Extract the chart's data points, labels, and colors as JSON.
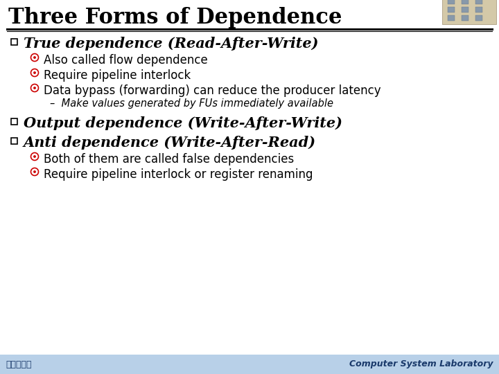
{
  "title": "Three Forms of Dependence",
  "title_fontsize": 22,
  "title_color": "#000000",
  "bg_color": "#ffffff",
  "footer_bg_color": "#b8d0e8",
  "footer_left": "高麗大學校",
  "footer_right": "Computer System Laboratory",
  "footer_fontsize": 9,
  "bullet1_text": "True dependence (Read-After-Write)",
  "bullet2_text": "Output dependence (Write-After-Write)",
  "bullet3_text": "Anti dependence (Write-After-Read)",
  "sub_bullets_1": [
    "Also called flow dependence",
    "Require pipeline interlock",
    "Data bypass (forwarding) can reduce the producer latency"
  ],
  "sub_sub_bullet": "Make values generated by FUs immediately available",
  "sub_bullets_3": [
    "Both of them are called false dependencies",
    "Require pipeline interlock or register renaming"
  ],
  "bullet_color": "#000000",
  "sub_bullet_color": "#cc0000",
  "italic_bullet_fontsize": 15,
  "sub_bullet_fontsize": 12,
  "sub_sub_fontsize": 10.5
}
